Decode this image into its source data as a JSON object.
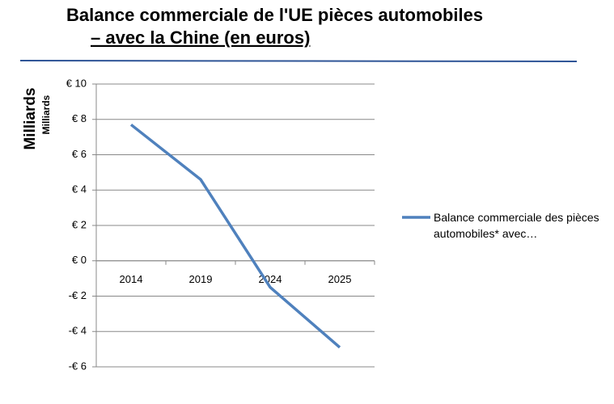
{
  "chart_data": {
    "type": "line",
    "title": "Balance commerciale de l'UE pièces automobiles",
    "subtitle": "– avec la Chine (en euros)",
    "y_axis_title": "Milliards",
    "y_axis_unit": "Milliards",
    "categories": [
      "2014",
      "2019",
      "2024",
      "2025"
    ],
    "series": [
      {
        "name": "Balance commerciale des pièces automobiles* avec…",
        "color": "#4f81bd",
        "values": [
          7.7,
          4.6,
          -1.5,
          -4.9
        ]
      }
    ],
    "ylim": [
      -6,
      10
    ],
    "yticks": [
      {
        "value": -6,
        "label": "-€ 6"
      },
      {
        "value": -4,
        "label": "-€ 4"
      },
      {
        "value": -2,
        "label": "-€ 2"
      },
      {
        "value": 0,
        "label": "€ 0"
      },
      {
        "value": 2,
        "label": "€ 2"
      },
      {
        "value": 4,
        "label": "€ 4"
      },
      {
        "value": 6,
        "label": "€ 6"
      },
      {
        "value": 8,
        "label": "€ 8"
      },
      {
        "value": 10,
        "label": "€ 10"
      }
    ],
    "grid": true,
    "legend": "right"
  }
}
